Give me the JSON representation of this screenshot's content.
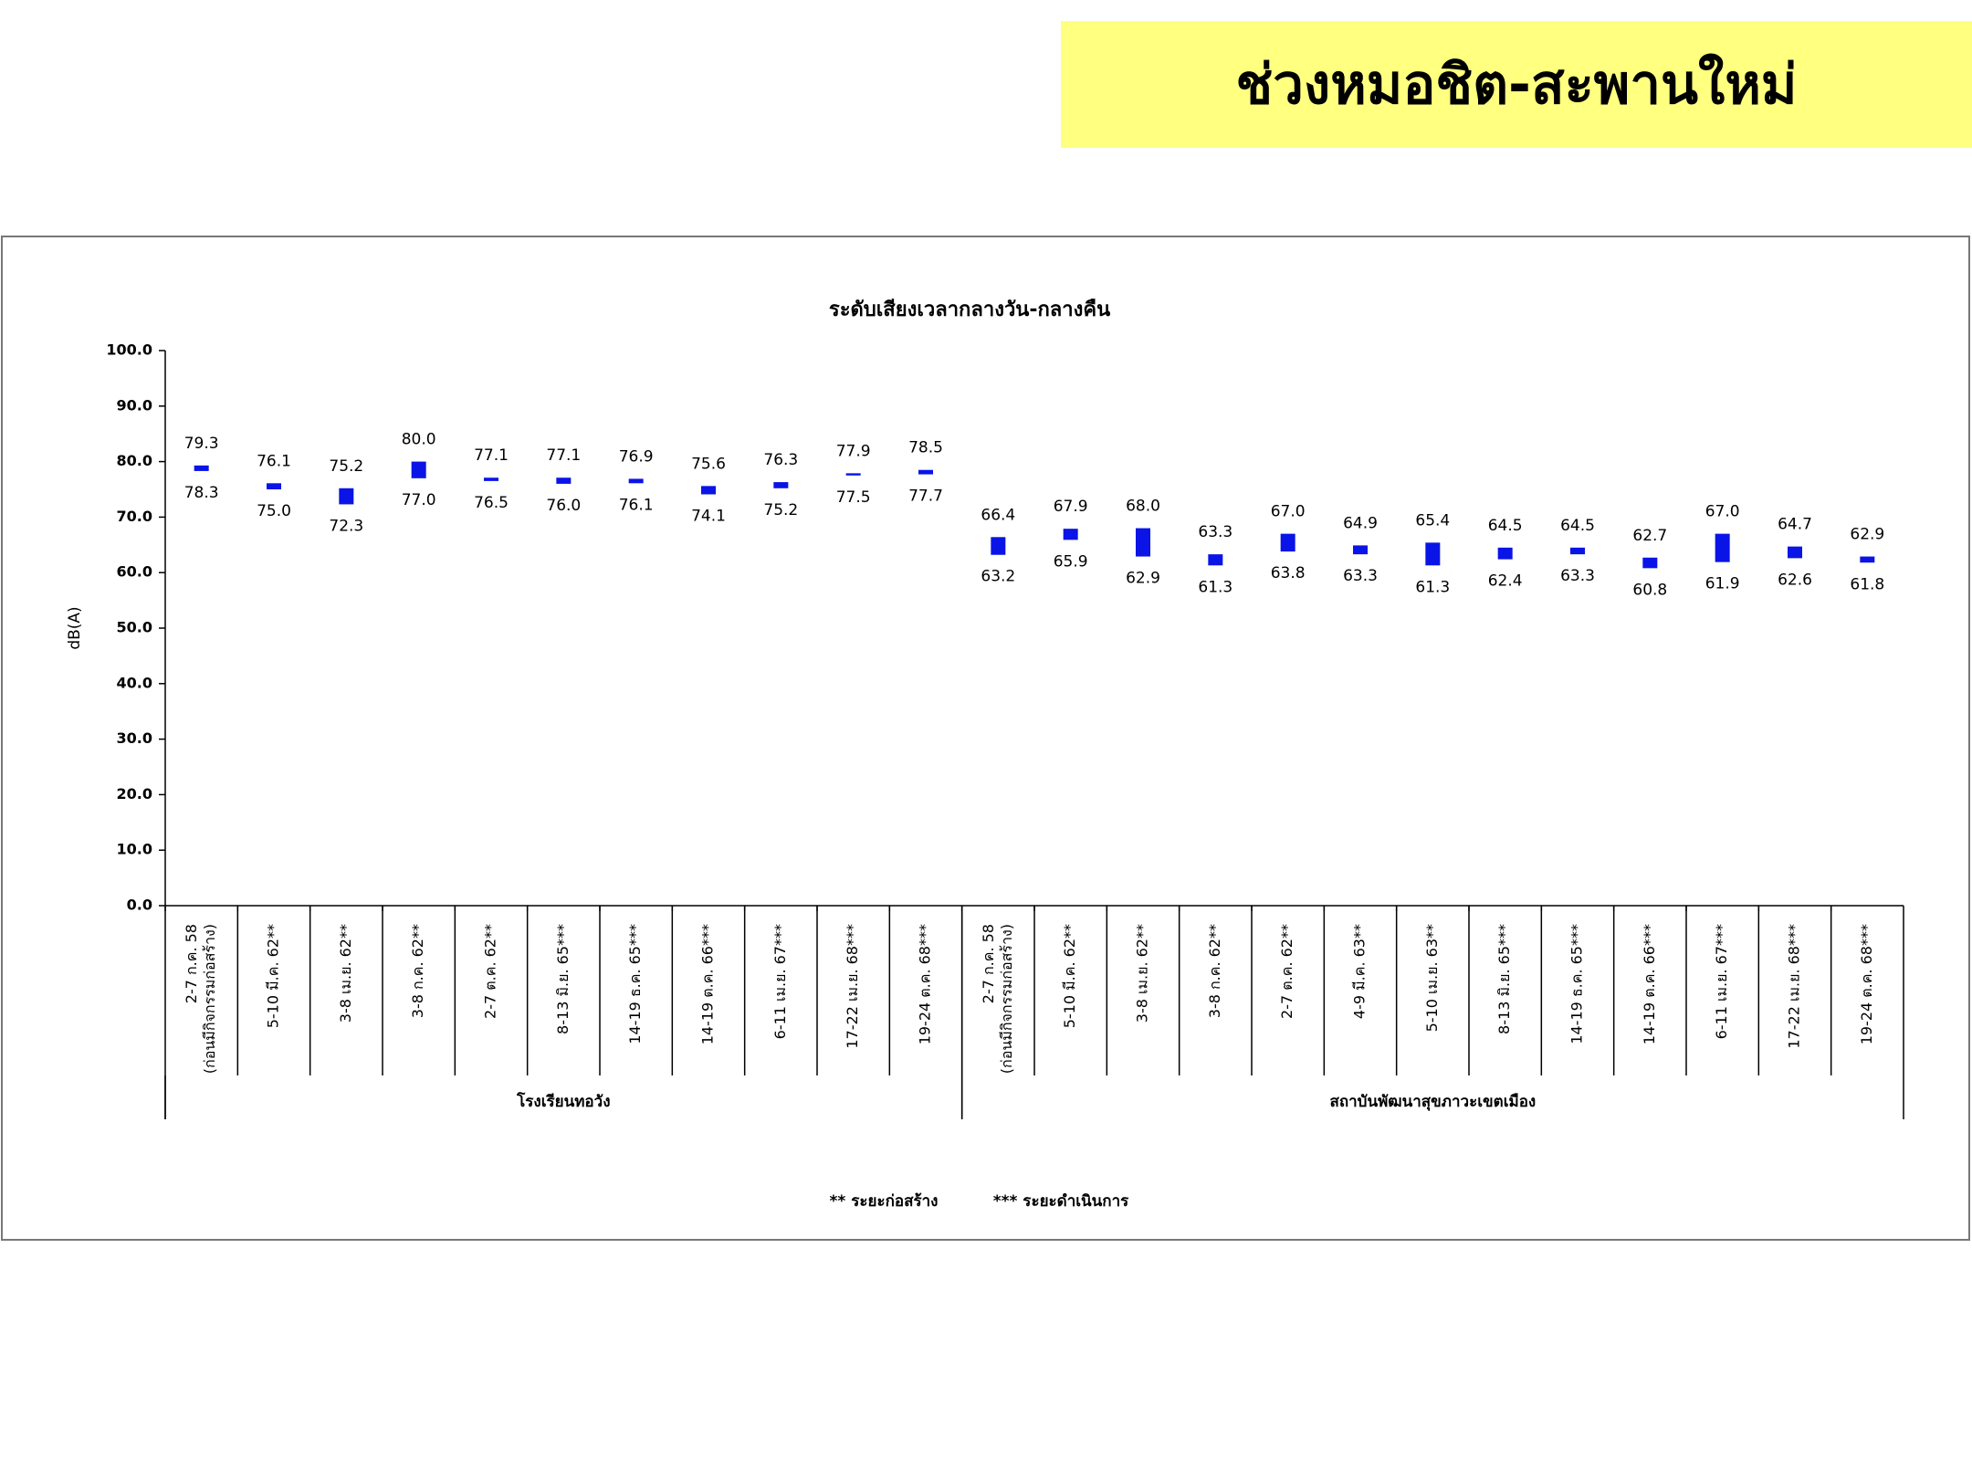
{
  "header": {
    "title": "ช่วงหมอชิต-สะพานใหม่"
  },
  "chart_data": {
    "type": "floating-bar",
    "title": "ระดับเสียงเวลากลางวัน-กลางคืน",
    "y_label": "dB(A)",
    "ylim": [
      0,
      100
    ],
    "yticks": [
      {
        "value": 0,
        "label": "0.0"
      },
      {
        "value": 10,
        "label": "10.0"
      },
      {
        "value": 20,
        "label": "20.0"
      },
      {
        "value": 30,
        "label": "30.0"
      },
      {
        "value": 40,
        "label": "40.0"
      },
      {
        "value": 50,
        "label": "50.0"
      },
      {
        "value": 60,
        "label": "60.0"
      },
      {
        "value": 70,
        "label": "70.0"
      },
      {
        "value": 80,
        "label": "80.0"
      },
      {
        "value": 90,
        "label": "90.0"
      },
      {
        "value": 100,
        "label": "100.0"
      }
    ],
    "groups": [
      {
        "label": "โรงเรียนทอวัง",
        "categories": [
          [
            "2-7 ก.ค. 58",
            "(ก่อนมีกิจกรรมก่อสร้าง)"
          ],
          [
            "5-10 มี.ค. 62**"
          ],
          [
            "3-8 เม.ย. 62**"
          ],
          [
            "3-8 ก.ค. 62**"
          ],
          [
            "2-7 ต.ค. 62**"
          ],
          [
            "8-13 มิ.ย. 65***"
          ],
          [
            "14-19 ธ.ค. 65***"
          ],
          [
            "14-19 ต.ค. 66***"
          ],
          [
            "6-11 เม.ย. 67***"
          ],
          [
            "17-22 เม.ย. 68***"
          ],
          [
            "19-24 ต.ค. 68***"
          ]
        ]
      },
      {
        "label": "สถาบันพัฒนาสุขภาวะเขตเมือง",
        "categories": [
          [
            "2-7 ก.ค. 58",
            "(ก่อนมีกิจกรรมก่อสร้าง)"
          ],
          [
            "5-10 มี.ค. 62**"
          ],
          [
            "3-8 เม.ย. 62**"
          ],
          [
            "3-8 ก.ค. 62**"
          ],
          [
            "2-7 ต.ค. 62**"
          ],
          [
            "4-9 มี.ค. 63**"
          ],
          [
            "5-10 เม.ย. 63**"
          ],
          [
            "8-13 มิ.ย. 65***"
          ],
          [
            "14-19 ธ.ค. 65***"
          ],
          [
            "14-19 ต.ค. 66***"
          ],
          [
            "6-11 เม.ย. 67***"
          ],
          [
            "17-22 เม.ย. 68***"
          ],
          [
            "19-24 ต.ค. 68***"
          ]
        ]
      }
    ],
    "color": "#0a14e6",
    "series": [
      {
        "values": [
          78.3,
          75.0,
          72.3,
          77.0,
          76.5,
          76.0,
          76.1,
          74.1,
          75.2,
          77.5,
          77.7,
          63.2,
          65.9,
          62.9,
          61.3,
          63.8,
          63.3,
          61.3,
          62.4,
          63.3,
          60.8,
          61.9,
          62.6,
          61.8
        ],
        "value_labels": [
          "78.3",
          "75.0",
          "72.3",
          "77.0",
          "76.5",
          "76.0",
          "76.1",
          "74.1",
          "75.2",
          "77.5",
          "77.7",
          "63.2",
          "65.9",
          "62.9",
          "61.3",
          "63.8",
          "63.3",
          "61.3",
          "62.4",
          "63.3",
          "60.8",
          "61.9",
          "62.6",
          "61.8"
        ]
      },
      {
        "values": [
          79.3,
          76.1,
          75.2,
          80.0,
          77.1,
          77.1,
          76.9,
          75.6,
          76.3,
          77.9,
          78.5,
          66.4,
          67.9,
          68.0,
          63.3,
          67.0,
          64.9,
          65.4,
          64.5,
          64.5,
          62.7,
          67.0,
          64.7,
          62.9
        ],
        "value_labels": [
          "79.3",
          "76.1",
          "75.2",
          "80.0",
          "77.1",
          "77.1",
          "76.9",
          "75.6",
          "76.3",
          "77.9",
          "78.5",
          "66.4",
          "67.9",
          "68.0",
          "63.3",
          "67.0",
          "64.9",
          "65.4",
          "64.5",
          "64.5",
          "62.7",
          "67.0",
          "64.7",
          "62.9"
        ]
      }
    ],
    "footnotes": [
      "** ระยะก่อสร้าง",
      "*** ระยะดำเนินการ"
    ]
  }
}
